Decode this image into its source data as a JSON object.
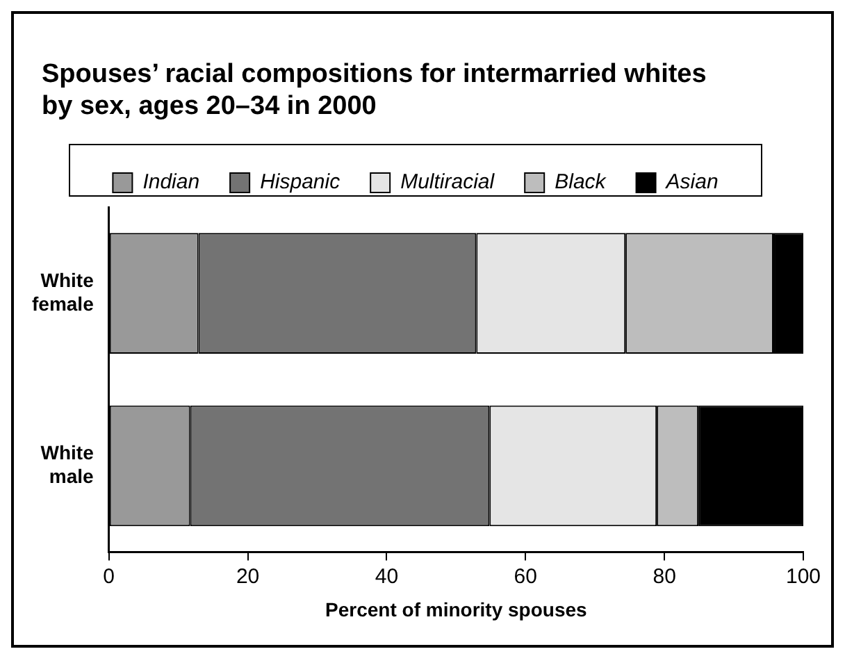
{
  "chart_data": {
    "type": "bar",
    "orientation": "horizontal",
    "stacked": true,
    "title": "Spouses’ racial compositions for intermarried whites by sex, ages 20–34 in 2000",
    "xlabel": "Percent of minority spouses",
    "categories": [
      "White female",
      "White male"
    ],
    "series": [
      {
        "name": "Indian",
        "color": "#999999",
        "values": [
          12.9,
          11.7
        ]
      },
      {
        "name": "Hispanic",
        "color": "#737373",
        "values": [
          40.0,
          43.1
        ]
      },
      {
        "name": "Multiracial",
        "color": "#e5e5e5",
        "values": [
          21.5,
          24.1
        ]
      },
      {
        "name": "Black",
        "color": "#bdbdbd",
        "values": [
          21.3,
          6.0
        ]
      },
      {
        "name": "Asian",
        "color": "#000000",
        "values": [
          4.3,
          15.1
        ]
      }
    ],
    "xlim": [
      0,
      100
    ],
    "xticks": [
      0,
      20,
      40,
      60,
      80,
      100
    ],
    "grid": false,
    "legend": "top"
  }
}
